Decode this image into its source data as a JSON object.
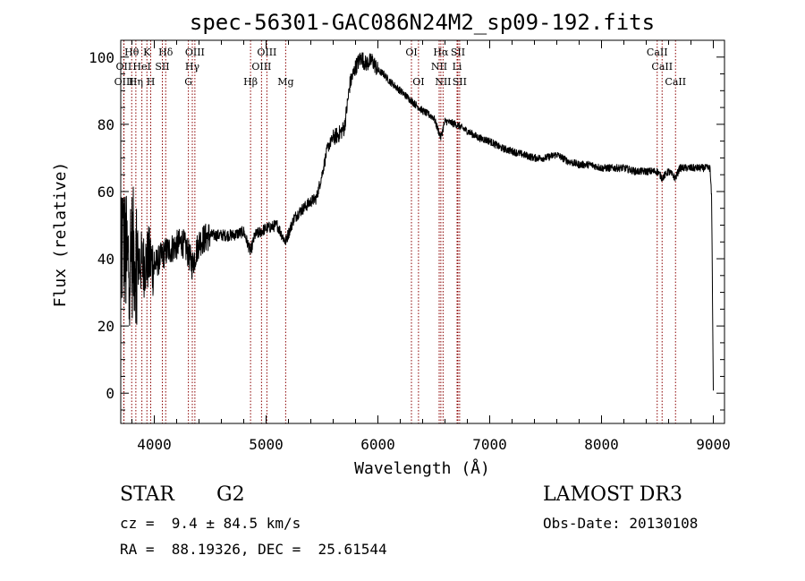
{
  "chart_data": {
    "type": "line",
    "title": "spec-56301-GAC086N24M2_sp09-192.fits",
    "xlabel": "Wavelength (Å)",
    "ylabel": "Flux (relative)",
    "xlim": [
      3700,
      9100
    ],
    "ylim": [
      -9,
      105
    ],
    "x_ticks": [
      4000,
      5000,
      6000,
      7000,
      8000,
      9000
    ],
    "y_ticks": [
      0,
      20,
      40,
      60,
      80,
      100
    ],
    "grid": false,
    "series_color": "#000000",
    "line_color": "#8b0000",
    "spectrum_anchors": [
      [
        3700,
        35
      ],
      [
        3720,
        45
      ],
      [
        3760,
        38
      ],
      [
        3800,
        42
      ],
      [
        3850,
        40
      ],
      [
        3900,
        38
      ],
      [
        3950,
        40
      ],
      [
        4000,
        38
      ],
      [
        4050,
        40
      ],
      [
        4100,
        42
      ],
      [
        4150,
        43
      ],
      [
        4200,
        44
      ],
      [
        4250,
        45
      ],
      [
        4300,
        42
      ],
      [
        4340,
        38
      ],
      [
        4400,
        45
      ],
      [
        4500,
        47
      ],
      [
        4600,
        47
      ],
      [
        4700,
        47
      ],
      [
        4800,
        48
      ],
      [
        4861,
        42
      ],
      [
        4900,
        47
      ],
      [
        5000,
        49
      ],
      [
        5100,
        50
      ],
      [
        5172,
        45
      ],
      [
        5250,
        52
      ],
      [
        5300,
        54
      ],
      [
        5400,
        57
      ],
      [
        5450,
        58
      ],
      [
        5500,
        65
      ],
      [
        5550,
        73
      ],
      [
        5600,
        76
      ],
      [
        5650,
        77
      ],
      [
        5700,
        79
      ],
      [
        5750,
        92
      ],
      [
        5800,
        97
      ],
      [
        5850,
        100
      ],
      [
        5890,
        98
      ],
      [
        5950,
        99
      ],
      [
        6000,
        96
      ],
      [
        6050,
        95
      ],
      [
        6100,
        93
      ],
      [
        6200,
        90
      ],
      [
        6300,
        87
      ],
      [
        6400,
        84
      ],
      [
        6500,
        82
      ],
      [
        6563,
        76
      ],
      [
        6600,
        81
      ],
      [
        6700,
        80
      ],
      [
        6800,
        78
      ],
      [
        6900,
        76
      ],
      [
        7000,
        75
      ],
      [
        7100,
        73
      ],
      [
        7200,
        72
      ],
      [
        7300,
        71
      ],
      [
        7400,
        70
      ],
      [
        7500,
        70
      ],
      [
        7600,
        71
      ],
      [
        7700,
        69
      ],
      [
        7800,
        68
      ],
      [
        7900,
        68
      ],
      [
        8000,
        67
      ],
      [
        8100,
        67
      ],
      [
        8200,
        67
      ],
      [
        8300,
        66
      ],
      [
        8400,
        66
      ],
      [
        8500,
        66
      ],
      [
        8542,
        64
      ],
      [
        8600,
        66
      ],
      [
        8662,
        64
      ],
      [
        8700,
        67
      ],
      [
        8800,
        67
      ],
      [
        8900,
        67
      ],
      [
        8970,
        67
      ],
      [
        8985,
        58
      ],
      [
        8995,
        20
      ],
      [
        9000,
        0
      ]
    ],
    "line_markers": [
      {
        "label": "Hθ",
        "x": 3798,
        "row": 1
      },
      {
        "label": "K",
        "x": 3934,
        "row": 1
      },
      {
        "label": "Hδ",
        "x": 4102,
        "row": 1
      },
      {
        "label": "OIII",
        "x": 4363,
        "row": 1
      },
      {
        "label": "OIII",
        "x": 5007,
        "row": 1
      },
      {
        "label": "OI",
        "x": 6300,
        "row": 1
      },
      {
        "label": "Hα",
        "x": 6563,
        "row": 1
      },
      {
        "label": "SII",
        "x": 6716,
        "row": 1
      },
      {
        "label": "CaII",
        "x": 8498,
        "row": 1
      },
      {
        "label": "OII",
        "x": 3727,
        "row": 2
      },
      {
        "label": "HeI",
        "x": 3889,
        "row": 2
      },
      {
        "label": "SII",
        "x": 4072,
        "row": 2
      },
      {
        "label": "Hγ",
        "x": 4340,
        "row": 2
      },
      {
        "label": "OIII",
        "x": 4959,
        "row": 2
      },
      {
        "label": "NII",
        "x": 6548,
        "row": 2
      },
      {
        "label": "Li",
        "x": 6708,
        "row": 2
      },
      {
        "label": "CaII",
        "x": 8542,
        "row": 2
      },
      {
        "label": "OIII",
        "x": 3729,
        "row": 3
      },
      {
        "label": "Hη",
        "x": 3835,
        "row": 3
      },
      {
        "label": "H",
        "x": 3968,
        "row": 3
      },
      {
        "label": "G",
        "x": 4305,
        "row": 3
      },
      {
        "label": "Hβ",
        "x": 4861,
        "row": 3
      },
      {
        "label": "Mg",
        "x": 5175,
        "row": 3
      },
      {
        "label": "OI",
        "x": 6363,
        "row": 3
      },
      {
        "label": "NII",
        "x": 6583,
        "row": 3
      },
      {
        "label": "SII",
        "x": 6731,
        "row": 3
      },
      {
        "label": "CaII",
        "x": 8662,
        "row": 3
      }
    ]
  },
  "info": {
    "object_class": "STAR",
    "subclass": "G2",
    "survey": "LAMOST DR3",
    "redshift": "cz =  9.4 ± 84.5 km/s",
    "obs_date": "Obs-Date: 20130108",
    "coords": "RA =  88.19326, DEC =  25.61544"
  }
}
